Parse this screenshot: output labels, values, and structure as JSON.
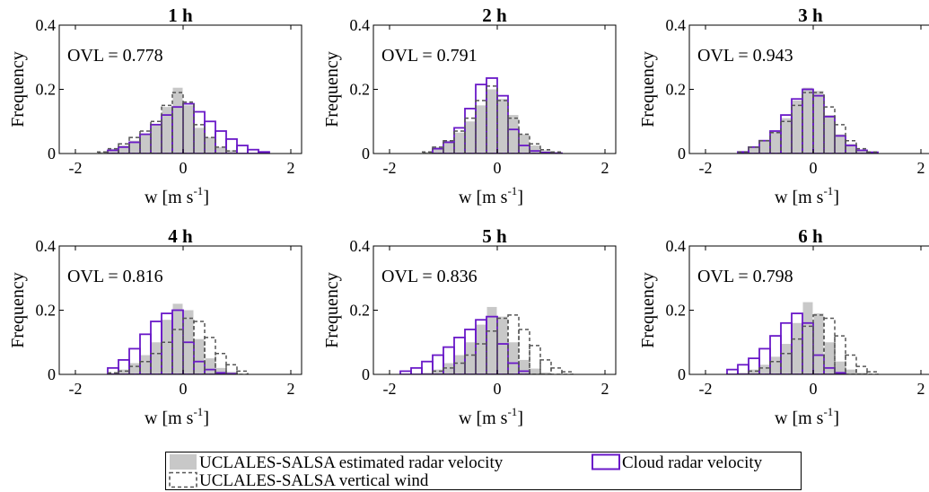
{
  "colors": {
    "estimated_fill": "#c8c8c8",
    "cloud_radar": "#6a19c8",
    "vertical_wind": "#555555",
    "axis": "#000000"
  },
  "legend": {
    "entries": [
      {
        "label": "UCLALES-SALSA estimated radar velocity",
        "style": "filled-bar"
      },
      {
        "label": "Cloud radar velocity",
        "style": "purple-outline"
      },
      {
        "label": "UCLALES-SALSA vertical wind",
        "style": "dashed-outline"
      }
    ]
  },
  "chart_data": [
    {
      "type": "bar",
      "title": "1 h",
      "annotation": "OVL = 0.778",
      "xlabel_base": "w [m s",
      "xlabel_sup": "-1",
      "xlabel_close": "]",
      "ylabel": "Frequency",
      "xlim": [
        -2.3,
        2.2
      ],
      "ylim": [
        0,
        0.4
      ],
      "xticks": [
        "-2",
        "0",
        "2"
      ],
      "yticks": [
        "0",
        "0.2",
        "0.4"
      ],
      "bin_width": 0.2,
      "series": [
        {
          "name": "UCLALES-SALSA estimated radar velocity",
          "bin_edges": [
            -1.6,
            -1.4,
            -1.2,
            -1.0,
            -0.8,
            -0.6,
            -0.4,
            -0.2,
            0.0,
            0.2,
            0.4,
            0.6,
            0.8,
            1.0
          ],
          "values": [
            0.005,
            0.015,
            0.025,
            0.04,
            0.06,
            0.09,
            0.145,
            0.205,
            0.15,
            0.08,
            0.05,
            0.02,
            0.01
          ]
        },
        {
          "name": "Cloud radar velocity",
          "bin_edges": [
            -1.4,
            -1.2,
            -1.0,
            -0.8,
            -0.6,
            -0.4,
            -0.2,
            0.0,
            0.2,
            0.4,
            0.6,
            0.8,
            1.0,
            1.2,
            1.4,
            1.6
          ],
          "values": [
            0.01,
            0.02,
            0.035,
            0.06,
            0.09,
            0.12,
            0.145,
            0.155,
            0.13,
            0.1,
            0.07,
            0.045,
            0.025,
            0.012,
            0.005
          ]
        },
        {
          "name": "UCLALES-SALSA vertical wind",
          "bin_edges": [
            -1.6,
            -1.4,
            -1.2,
            -1.0,
            -0.8,
            -0.6,
            -0.4,
            -0.2,
            0.0,
            0.2,
            0.4,
            0.6,
            0.8,
            1.0
          ],
          "values": [
            0.005,
            0.015,
            0.03,
            0.05,
            0.07,
            0.1,
            0.15,
            0.19,
            0.16,
            0.09,
            0.05,
            0.02,
            0.008
          ]
        }
      ]
    },
    {
      "type": "bar",
      "title": "2 h",
      "annotation": "OVL = 0.791",
      "xlabel_base": "w [m s",
      "xlabel_sup": "-1",
      "xlabel_close": "]",
      "ylabel": "Frequency",
      "xlim": [
        -2.3,
        2.2
      ],
      "ylim": [
        0,
        0.4
      ],
      "xticks": [
        "-2",
        "0",
        "2"
      ],
      "yticks": [
        "0",
        "0.2",
        "0.4"
      ],
      "bin_width": 0.2,
      "series": [
        {
          "name": "UCLALES-SALSA estimated radar velocity",
          "bin_edges": [
            -1.4,
            -1.2,
            -1.0,
            -0.8,
            -0.6,
            -0.4,
            -0.2,
            0.0,
            0.2,
            0.4,
            0.6,
            0.8,
            1.0,
            1.2
          ],
          "values": [
            0.005,
            0.02,
            0.04,
            0.065,
            0.1,
            0.15,
            0.2,
            0.17,
            0.12,
            0.06,
            0.025,
            0.01,
            0.005
          ]
        },
        {
          "name": "Cloud radar velocity",
          "bin_edges": [
            -1.2,
            -1.0,
            -0.8,
            -0.6,
            -0.4,
            -0.2,
            0.0,
            0.2,
            0.4,
            0.6,
            0.8,
            1.0,
            1.2
          ],
          "values": [
            0.015,
            0.035,
            0.08,
            0.14,
            0.215,
            0.235,
            0.18,
            0.075,
            0.025,
            0.008,
            0.003,
            0.001
          ]
        },
        {
          "name": "UCLALES-SALSA vertical wind",
          "bin_edges": [
            -1.4,
            -1.2,
            -1.0,
            -0.8,
            -0.6,
            -0.4,
            -0.2,
            0.0,
            0.2,
            0.4,
            0.6,
            0.8,
            1.0,
            1.2
          ],
          "values": [
            0.005,
            0.02,
            0.04,
            0.07,
            0.11,
            0.165,
            0.21,
            0.165,
            0.11,
            0.06,
            0.03,
            0.012,
            0.005
          ]
        }
      ]
    },
    {
      "type": "bar",
      "title": "3 h",
      "annotation": "OVL = 0.943",
      "xlabel_base": "w [m s",
      "xlabel_sup": "-1",
      "xlabel_close": "]",
      "ylabel": "Frequency",
      "xlim": [
        -2.3,
        2.2
      ],
      "ylim": [
        0,
        0.4
      ],
      "xticks": [
        "-2",
        "0",
        "2"
      ],
      "yticks": [
        "0",
        "0.2",
        "0.4"
      ],
      "bin_width": 0.2,
      "series": [
        {
          "name": "UCLALES-SALSA estimated radar velocity",
          "bin_edges": [
            -1.4,
            -1.2,
            -1.0,
            -0.8,
            -0.6,
            -0.4,
            -0.2,
            0.0,
            0.2,
            0.4,
            0.6,
            0.8,
            1.0,
            1.2
          ],
          "values": [
            0.005,
            0.02,
            0.04,
            0.07,
            0.11,
            0.165,
            0.205,
            0.195,
            0.12,
            0.06,
            0.03,
            0.012,
            0.005
          ]
        },
        {
          "name": "Cloud radar velocity",
          "bin_edges": [
            -1.4,
            -1.2,
            -1.0,
            -0.8,
            -0.6,
            -0.4,
            -0.2,
            0.0,
            0.2,
            0.4,
            0.6,
            0.8,
            1.0,
            1.2
          ],
          "values": [
            0.005,
            0.02,
            0.04,
            0.07,
            0.12,
            0.17,
            0.2,
            0.18,
            0.115,
            0.055,
            0.025,
            0.01,
            0.004
          ]
        },
        {
          "name": "UCLALES-SALSA vertical wind",
          "bin_edges": [
            -1.4,
            -1.2,
            -1.0,
            -0.8,
            -0.6,
            -0.4,
            -0.2,
            0.0,
            0.2,
            0.4,
            0.6,
            0.8,
            1.0,
            1.2
          ],
          "values": [
            0.005,
            0.02,
            0.04,
            0.065,
            0.1,
            0.15,
            0.19,
            0.19,
            0.145,
            0.09,
            0.04,
            0.015,
            0.005
          ]
        }
      ]
    },
    {
      "type": "bar",
      "title": "4 h",
      "annotation": "OVL = 0.816",
      "xlabel_base": "w [m s",
      "xlabel_sup": "-1",
      "xlabel_close": "]",
      "ylabel": "Frequency",
      "xlim": [
        -2.3,
        2.2
      ],
      "ylim": [
        0,
        0.4
      ],
      "xticks": [
        "-2",
        "0",
        "2"
      ],
      "yticks": [
        "0",
        "0.2",
        "0.4"
      ],
      "bin_width": 0.2,
      "series": [
        {
          "name": "UCLALES-SALSA estimated radar velocity",
          "bin_edges": [
            -1.4,
            -1.2,
            -1.0,
            -0.8,
            -0.6,
            -0.4,
            -0.2,
            0.0,
            0.2,
            0.4,
            0.6,
            0.8,
            1.0
          ],
          "values": [
            0.005,
            0.015,
            0.035,
            0.06,
            0.1,
            0.17,
            0.22,
            0.2,
            0.11,
            0.05,
            0.02,
            0.008
          ]
        },
        {
          "name": "Cloud radar velocity",
          "bin_edges": [
            -1.4,
            -1.2,
            -1.0,
            -0.8,
            -0.6,
            -0.4,
            -0.2,
            0.0,
            0.2,
            0.4,
            0.6,
            0.8,
            1.0
          ],
          "values": [
            0.02,
            0.045,
            0.08,
            0.125,
            0.165,
            0.19,
            0.2,
            0.1,
            0.04,
            0.015,
            0.005,
            0.002
          ]
        },
        {
          "name": "UCLALES-SALSA vertical wind",
          "bin_edges": [
            -1.4,
            -1.2,
            -1.0,
            -0.8,
            -0.6,
            -0.4,
            -0.2,
            0.0,
            0.2,
            0.4,
            0.6,
            0.8,
            1.0,
            1.2
          ],
          "values": [
            0.005,
            0.01,
            0.025,
            0.04,
            0.065,
            0.1,
            0.14,
            0.175,
            0.165,
            0.115,
            0.065,
            0.03,
            0.01
          ]
        }
      ]
    },
    {
      "type": "bar",
      "title": "5 h",
      "annotation": "OVL = 0.836",
      "xlabel_base": "w [m s",
      "xlabel_sup": "-1",
      "xlabel_close": "]",
      "ylabel": "Frequency",
      "xlim": [
        -2.3,
        2.2
      ],
      "ylim": [
        0,
        0.4
      ],
      "xticks": [
        "-2",
        "0",
        "2"
      ],
      "yticks": [
        "0",
        "0.2",
        "0.4"
      ],
      "bin_width": 0.2,
      "series": [
        {
          "name": "UCLALES-SALSA estimated radar velocity",
          "bin_edges": [
            -1.4,
            -1.2,
            -1.0,
            -0.8,
            -0.6,
            -0.4,
            -0.2,
            0.0,
            0.2,
            0.4,
            0.6,
            0.8,
            1.0
          ],
          "values": [
            0.005,
            0.015,
            0.035,
            0.06,
            0.1,
            0.155,
            0.21,
            0.18,
            0.1,
            0.045,
            0.018,
            0.006
          ]
        },
        {
          "name": "Cloud radar velocity",
          "bin_edges": [
            -1.8,
            -1.6,
            -1.4,
            -1.2,
            -1.0,
            -0.8,
            -0.6,
            -0.4,
            -0.2,
            0.0,
            0.2,
            0.4,
            0.6
          ],
          "values": [
            0.01,
            0.02,
            0.04,
            0.06,
            0.085,
            0.115,
            0.14,
            0.17,
            0.18,
            0.095,
            0.035,
            0.01
          ]
        },
        {
          "name": "UCLALES-SALSA vertical wind",
          "bin_edges": [
            -1.2,
            -1.0,
            -0.8,
            -0.6,
            -0.4,
            -0.2,
            0.0,
            0.2,
            0.4,
            0.6,
            0.8,
            1.0,
            1.2,
            1.4
          ],
          "values": [
            0.01,
            0.02,
            0.035,
            0.06,
            0.095,
            0.135,
            0.175,
            0.185,
            0.14,
            0.09,
            0.045,
            0.02,
            0.008
          ]
        }
      ]
    },
    {
      "type": "bar",
      "title": "6 h",
      "annotation": "OVL = 0.798",
      "xlabel_base": "w [m s",
      "xlabel_sup": "-1",
      "xlabel_close": "]",
      "ylabel": "Frequency",
      "xlim": [
        -2.3,
        2.2
      ],
      "ylim": [
        0,
        0.4
      ],
      "xticks": [
        "-2",
        "0",
        "2"
      ],
      "yticks": [
        "0",
        "0.2",
        "0.4"
      ],
      "bin_width": 0.2,
      "series": [
        {
          "name": "UCLALES-SALSA estimated radar velocity",
          "bin_edges": [
            -1.4,
            -1.2,
            -1.0,
            -0.8,
            -0.6,
            -0.4,
            -0.2,
            0.0,
            0.2,
            0.4,
            0.6,
            0.8,
            1.0
          ],
          "values": [
            0.005,
            0.015,
            0.03,
            0.055,
            0.095,
            0.16,
            0.225,
            0.19,
            0.1,
            0.04,
            0.015,
            0.005
          ]
        },
        {
          "name": "Cloud radar velocity",
          "bin_edges": [
            -1.6,
            -1.4,
            -1.2,
            -1.0,
            -0.8,
            -0.6,
            -0.4,
            -0.2,
            0.0,
            0.2,
            0.4,
            0.6
          ],
          "values": [
            0.015,
            0.03,
            0.05,
            0.08,
            0.12,
            0.16,
            0.19,
            0.16,
            0.06,
            0.02,
            0.005
          ]
        },
        {
          "name": "UCLALES-SALSA vertical wind",
          "bin_edges": [
            -1.2,
            -1.0,
            -0.8,
            -0.6,
            -0.4,
            -0.2,
            0.0,
            0.2,
            0.4,
            0.6,
            0.8,
            1.0,
            1.2
          ],
          "values": [
            0.01,
            0.02,
            0.04,
            0.065,
            0.11,
            0.15,
            0.185,
            0.175,
            0.12,
            0.06,
            0.025,
            0.008
          ]
        }
      ]
    }
  ]
}
